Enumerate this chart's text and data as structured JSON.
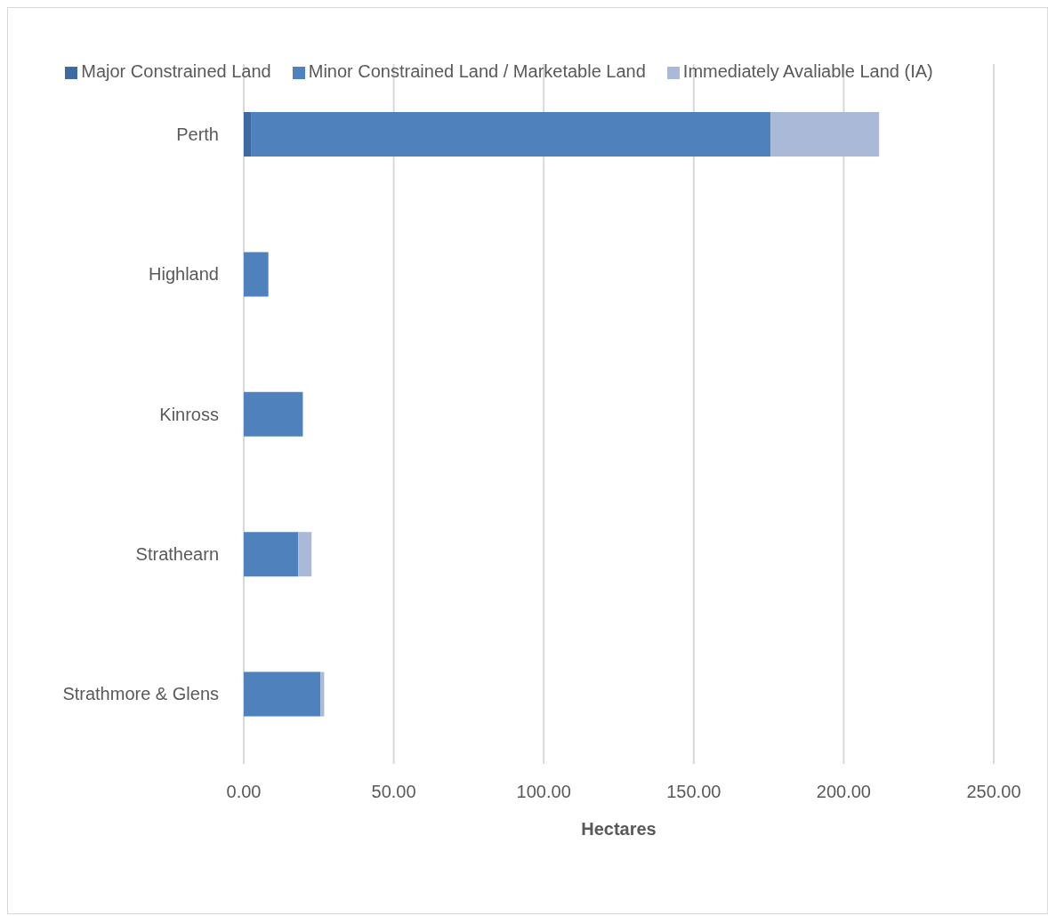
{
  "chart_data": {
    "type": "bar",
    "orientation": "horizontal",
    "stacked": true,
    "xlabel": "Hectares",
    "categories": [
      "Perth",
      "Highland",
      "Kinross",
      "Strathearn",
      "Strathmore & Glens"
    ],
    "series": [
      {
        "name": "Major Constrained Land",
        "color": "#3e6aa0",
        "values": [
          2.4,
          0,
          0,
          0,
          0
        ]
      },
      {
        "name": "Minor Constrained Land / Marketable Land",
        "color": "#4f81bd",
        "values": [
          173.2,
          8.2,
          19.7,
          18.2,
          25.6
        ]
      },
      {
        "name": "Immediately Avaliable Land (IA)",
        "color": "#a9b9d7",
        "values": [
          36.2,
          0,
          0,
          4.4,
          1.2
        ]
      }
    ],
    "xlim": [
      0,
      250
    ],
    "xticks": [
      {
        "value": 0,
        "label": "0.00"
      },
      {
        "value": 50,
        "label": "50.00"
      },
      {
        "value": 100,
        "label": "100.00"
      },
      {
        "value": 150,
        "label": "150.00"
      },
      {
        "value": 200,
        "label": "200.00"
      },
      {
        "value": 250,
        "label": "250.00"
      }
    ],
    "grid": "x",
    "legend": "top"
  }
}
